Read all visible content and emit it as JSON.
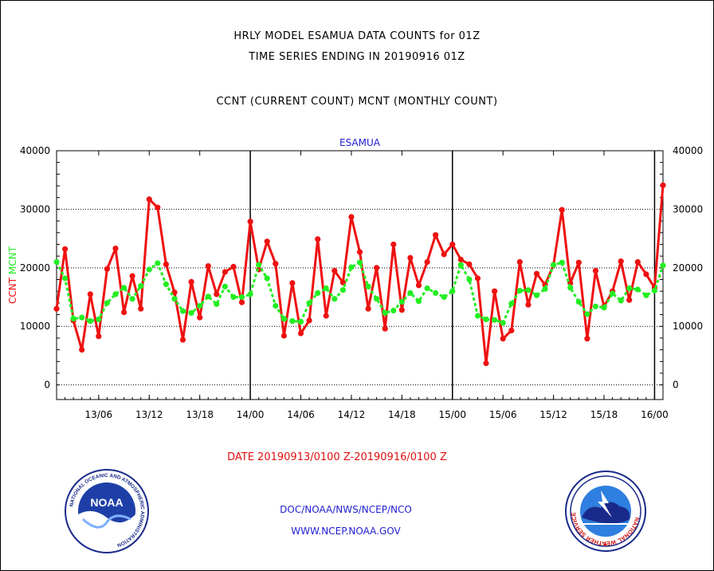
{
  "header": {
    "line1": "HRLY MODEL ESAMUA DATA COUNTS for 01Z",
    "line2": "TIME SERIES ENDING IN 20190916 01Z",
    "line3": "CCNT (CURRENT COUNT) MCNT (MONTHLY COUNT)"
  },
  "footer": {
    "date_range": "DATE 20190913/0100 Z-20190916/0100 Z",
    "org": "DOC/NOAA/NWS/NCEP/NCO",
    "url": "WWW.NCEP.NOAA.GOV"
  },
  "logos": {
    "noaa": {
      "center_text": "NOAA",
      "ring_text": "NATIONAL OCEANIC AND ATMOSPHERIC ADMINISTRATION",
      "bottom_text": "U.S. DEPARTMENT OF COMMERCE"
    },
    "nws": {
      "ring_text": "NATIONAL WEATHER SERVICE"
    }
  },
  "colors": {
    "ccnt": "#ee1111",
    "mcnt": "#22ee22",
    "axis_title": "#1f1fcf",
    "date_text": "#e01010"
  },
  "chart_data": {
    "type": "line",
    "title": "ESAMUA",
    "ylabel_left": [
      "CCNT",
      "MCNT"
    ],
    "ylim": [
      -2500,
      40000
    ],
    "y_ticks": [
      0,
      10000,
      20000,
      30000,
      40000
    ],
    "y_tick_labels": [
      "0",
      "10000",
      "20000",
      "30000",
      "40000"
    ],
    "x_tick_labels": [
      "13/06",
      "13/12",
      "13/18",
      "14/00",
      "14/06",
      "14/12",
      "14/18",
      "15/00",
      "15/06",
      "15/12",
      "15/18",
      "16/00"
    ],
    "x_tick_hours": [
      5,
      11,
      17,
      23,
      29,
      35,
      41,
      47,
      53,
      59,
      65,
      71
    ],
    "x_range_hours": [
      0,
      72
    ],
    "day_boundaries_hours": [
      23,
      47,
      71
    ],
    "grid": true,
    "series": [
      {
        "name": "CCNT",
        "color": "#ee1111",
        "style": "solid",
        "values": [
          13000,
          23200,
          11000,
          6000,
          15500,
          8300,
          19800,
          23300,
          12400,
          18600,
          13000,
          31700,
          30300,
          20600,
          15800,
          7700,
          17600,
          11500,
          20300,
          15500,
          19300,
          20200,
          14100,
          27900,
          19700,
          24500,
          20700,
          8400,
          17400,
          8800,
          11000,
          24900,
          11800,
          19500,
          17500,
          28700,
          22700,
          13000,
          20000,
          9600,
          24000,
          12800,
          21700,
          17000,
          21000,
          25600,
          22300,
          24000,
          21400,
          20600,
          18200,
          3700,
          16000,
          7900,
          9300,
          21000,
          13700,
          19000,
          17100,
          20500,
          29900,
          17400,
          20900,
          7900,
          19500,
          13400,
          16000,
          21100,
          14500,
          21000,
          18900,
          16600,
          34100
        ]
      },
      {
        "name": "MCNT",
        "color": "#22ee22",
        "style": "dotted",
        "values": [
          21000,
          18200,
          11300,
          11500,
          10900,
          11200,
          14000,
          15500,
          16600,
          14700,
          16900,
          19700,
          20800,
          17200,
          14700,
          12600,
          12300,
          13500,
          15100,
          13800,
          16800,
          15000,
          15000,
          15500,
          20500,
          18200,
          13500,
          11300,
          10900,
          10800,
          14000,
          15700,
          16500,
          14700,
          16200,
          20100,
          20900,
          16800,
          14700,
          12300,
          12700,
          14200,
          15700,
          14300,
          16500,
          15700,
          15000,
          16000,
          20500,
          18000,
          11800,
          11200,
          11100,
          10600,
          13900,
          16100,
          16200,
          15300,
          16400,
          20500,
          20900,
          16600,
          14200,
          12100,
          13400,
          13200,
          15600,
          14400,
          16500,
          16300,
          15300,
          16100,
          20400
        ]
      }
    ]
  }
}
